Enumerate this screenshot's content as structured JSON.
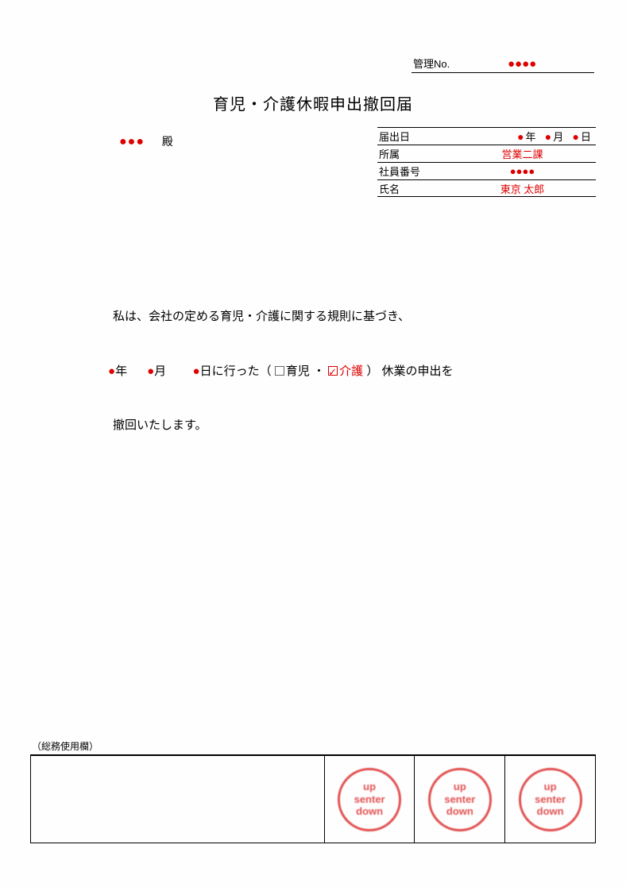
{
  "colors": {
    "accent": "#d00",
    "seal": "#d33",
    "text": "#000",
    "border": "#000",
    "background": "#fefefe"
  },
  "management": {
    "label": "管理No.",
    "value": "●●●●"
  },
  "title": "育児・介護休暇申出撤回届",
  "recipient": {
    "placeholder": "●●●",
    "suffix": "殿"
  },
  "info": {
    "rows": [
      {
        "label": "届出日"
      },
      {
        "label": "所属",
        "value": "営業二課"
      },
      {
        "label": "社員番号",
        "value": "●●●●"
      },
      {
        "label": "氏名",
        "value": "東京  太郎"
      }
    ],
    "date": {
      "yearMark": "●",
      "yearUnit": "年",
      "monthMark": "●",
      "monthUnit": "月",
      "dayMark": "●",
      "dayUnit": "日"
    }
  },
  "body": {
    "line1": "私は、会社の定める育児・介護に関する規則に基づき、",
    "line2": {
      "yMark": "●",
      "y": "年",
      "mMark": "●",
      "m": "月",
      "dMark": "●",
      "d": "日に行った（",
      "opt1": "育児",
      "sep": " ・ ",
      "opt2": "介護",
      "tail": "） 休業の申出を"
    },
    "line3": " 撤回いたします。"
  },
  "footer": {
    "label": "総務使用欄",
    "seals": [
      {
        "l1": "up",
        "l2": "senter",
        "l3": "down"
      },
      {
        "l1": "up",
        "l2": "senter",
        "l3": "down"
      },
      {
        "l1": "up",
        "l2": "senter",
        "l3": "down"
      }
    ]
  }
}
